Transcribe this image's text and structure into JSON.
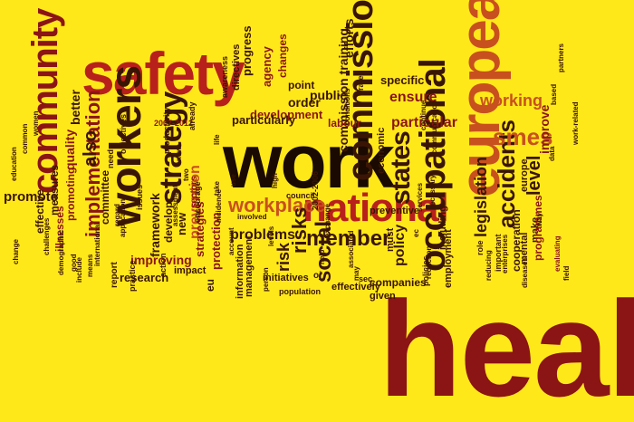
{
  "colors": {
    "background": "#ffe81a",
    "dark_red": "#8b1414",
    "red": "#b8201c",
    "orange": "#c8501e",
    "brown": "#3a1505",
    "black": "#1a0a02"
  },
  "words": [
    {
      "text": "health",
      "color": "dark_red"
    },
    {
      "text": "work",
      "color": "black"
    },
    {
      "text": "safety",
      "color": "red"
    },
    {
      "text": "european",
      "color": "orange"
    },
    {
      "text": "commission",
      "color": "brown"
    },
    {
      "text": "national",
      "color": "red"
    },
    {
      "text": "workers",
      "color": "brown"
    },
    {
      "text": "community",
      "color": "dark_red"
    },
    {
      "text": "occupational",
      "color": "brown"
    },
    {
      "text": "states",
      "color": "brown"
    },
    {
      "text": "strategy",
      "color": "brown"
    },
    {
      "text": "member",
      "color": "brown"
    },
    {
      "text": "workplace",
      "color": "orange"
    },
    {
      "text": "implementation",
      "color": "dark_red"
    },
    {
      "text": "accidents",
      "color": "brown"
    },
    {
      "text": "working",
      "color": "orange"
    },
    {
      "text": "smes",
      "color": "orange"
    },
    {
      "text": "legislation",
      "color": "brown"
    },
    {
      "text": "level",
      "color": "brown"
    },
    {
      "text": "social",
      "color": "brown"
    },
    {
      "text": "risks",
      "color": "brown"
    },
    {
      "text": "problems",
      "color": "brown"
    },
    {
      "text": "prevention",
      "color": "orange"
    },
    {
      "text": "promote",
      "color": "brown"
    },
    {
      "text": "also",
      "color": "brown"
    },
    {
      "text": "commission training",
      "color": "brown"
    },
    {
      "text": "economic",
      "color": "brown"
    },
    {
      "text": "particular",
      "color": "dark_red"
    },
    {
      "text": "ensure",
      "color": "dark_red"
    },
    {
      "text": "policy",
      "color": "brown"
    },
    {
      "text": "improve",
      "color": "dark_red"
    },
    {
      "text": "development",
      "color": "dark_red"
    },
    {
      "text": "particularly",
      "color": "brown"
    },
    {
      "text": "order",
      "color": "brown"
    },
    {
      "text": "public",
      "color": "brown"
    },
    {
      "text": "efforts",
      "color": "brown"
    },
    {
      "text": "specific",
      "color": "brown"
    },
    {
      "text": "agency",
      "color": "dark_red"
    },
    {
      "text": "progress",
      "color": "brown"
    },
    {
      "text": "directives",
      "color": "brown"
    },
    {
      "text": "changes",
      "color": "dark_red"
    },
    {
      "text": "labour",
      "color": "dark_red"
    },
    {
      "text": "point",
      "color": "brown"
    },
    {
      "text": "better",
      "color": "brown"
    },
    {
      "text": "quality",
      "color": "dark_red"
    },
    {
      "text": "committee",
      "color": "brown"
    },
    {
      "text": "measures",
      "color": "brown"
    },
    {
      "text": "effective",
      "color": "brown"
    },
    {
      "text": "illnesses",
      "color": "dark_red"
    },
    {
      "text": "promoting",
      "color": "dark_red"
    },
    {
      "text": "improving",
      "color": "dark_red"
    },
    {
      "text": "framework",
      "color": "brown"
    },
    {
      "text": "new",
      "color": "brown"
    },
    {
      "text": "develop",
      "color": "brown"
    },
    {
      "text": "strategies",
      "color": "dark_red"
    },
    {
      "text": "protection",
      "color": "dark_red"
    },
    {
      "text": "research",
      "color": "brown"
    },
    {
      "text": "eu",
      "color": "brown"
    },
    {
      "text": "impact",
      "color": "brown"
    },
    {
      "text": "risk",
      "color": "brown"
    },
    {
      "text": "information",
      "color": "brown"
    },
    {
      "text": "management",
      "color": "brown"
    },
    {
      "text": "initiatives",
      "color": "brown"
    },
    {
      "text": "preventive",
      "color": "brown"
    },
    {
      "text": "companies",
      "color": "brown"
    },
    {
      "text": "effectively",
      "color": "brown"
    },
    {
      "text": "employment",
      "color": "brown"
    },
    {
      "text": "cooperation",
      "color": "brown"
    },
    {
      "text": "mental",
      "color": "brown"
    },
    {
      "text": "make",
      "color": "brown"
    },
    {
      "text": "programmes",
      "color": "dark_red"
    },
    {
      "text": "europe",
      "color": "brown"
    },
    {
      "text": "including",
      "color": "brown"
    },
    {
      "text": "given",
      "color": "brown"
    },
    {
      "text": "must",
      "color": "brown"
    },
    {
      "text": "rate",
      "color": "brown"
    },
    {
      "text": "council",
      "color": "brown"
    },
    {
      "text": "population",
      "color": "brown"
    },
    {
      "text": "awareness",
      "color": "brown"
    },
    {
      "text": "2007-2012",
      "color": "dark_red"
    },
    {
      "text": "2002-2006",
      "color": "brown"
    },
    {
      "text": "productivity",
      "color": "brown"
    },
    {
      "text": "already",
      "color": "brown"
    },
    {
      "text": "encourage",
      "color": "brown"
    },
    {
      "text": "objectives",
      "color": "brown"
    },
    {
      "text": "need",
      "color": "brown"
    },
    {
      "text": "sectors",
      "color": "dark_red"
    },
    {
      "text": "report",
      "color": "brown"
    },
    {
      "text": "practice",
      "color": "brown"
    },
    {
      "text": "issues",
      "color": "brown"
    },
    {
      "text": "action",
      "color": "brown"
    },
    {
      "text": "common",
      "color": "brown"
    },
    {
      "text": "women",
      "color": "brown"
    },
    {
      "text": "education",
      "color": "brown"
    },
    {
      "text": "challenges",
      "color": "brown"
    },
    {
      "text": "demographic",
      "color": "brown"
    },
    {
      "text": "partners",
      "color": "brown"
    },
    {
      "text": "change",
      "color": "brown"
    },
    {
      "text": "regard",
      "color": "brown"
    },
    {
      "text": "application",
      "color": "brown"
    },
    {
      "text": "assessment",
      "color": "brown"
    },
    {
      "text": "involved",
      "color": "brown"
    },
    {
      "text": "incidence",
      "color": "brown"
    },
    {
      "text": "account",
      "color": "brown"
    },
    {
      "text": "levels",
      "color": "brown"
    },
    {
      "text": "exchange",
      "color": "brown"
    },
    {
      "text": "associated",
      "color": "brown"
    },
    {
      "text": "help",
      "color": "brown"
    },
    {
      "text": "may",
      "color": "brown"
    },
    {
      "text": "sec",
      "color": "brown"
    },
    {
      "text": "policies",
      "color": "brown"
    },
    {
      "text": "reduction",
      "color": "brown"
    },
    {
      "text": "role",
      "color": "brown"
    },
    {
      "text": "continue",
      "color": "brown"
    },
    {
      "text": "communication",
      "color": "brown"
    },
    {
      "text": "necessary",
      "color": "brown"
    },
    {
      "text": "services",
      "color": "brown"
    },
    {
      "text": "reducing",
      "color": "brown"
    },
    {
      "text": "important",
      "color": "brown"
    },
    {
      "text": "enterprises",
      "color": "brown"
    },
    {
      "text": "diseases",
      "color": "brown"
    },
    {
      "text": "evaluating",
      "color": "dark_red"
    },
    {
      "text": "field",
      "color": "brown"
    },
    {
      "text": "data",
      "color": "brown"
    },
    {
      "text": "based",
      "color": "brown"
    },
    {
      "text": "work-related",
      "color": "brown"
    },
    {
      "text": "good",
      "color": "brown"
    },
    {
      "text": "include",
      "color": "brown"
    },
    {
      "text": "means",
      "color": "brown"
    },
    {
      "text": "conditions",
      "color": "brown"
    },
    {
      "text": "international",
      "color": "brown"
    },
    {
      "text": "take",
      "color": "brown"
    },
    {
      "text": "person",
      "color": "brown"
    },
    {
      "text": "ec",
      "color": "brown"
    },
    {
      "text": "oj",
      "color": "brown"
    },
    {
      "text": "new",
      "color": "brown"
    },
    {
      "text": "way",
      "color": "brown"
    },
    {
      "text": "life",
      "color": "brown"
    },
    {
      "text": "two",
      "color": "brown"
    },
    {
      "text": "high",
      "color": "brown"
    },
    {
      "text": "use",
      "color": "brown"
    }
  ]
}
